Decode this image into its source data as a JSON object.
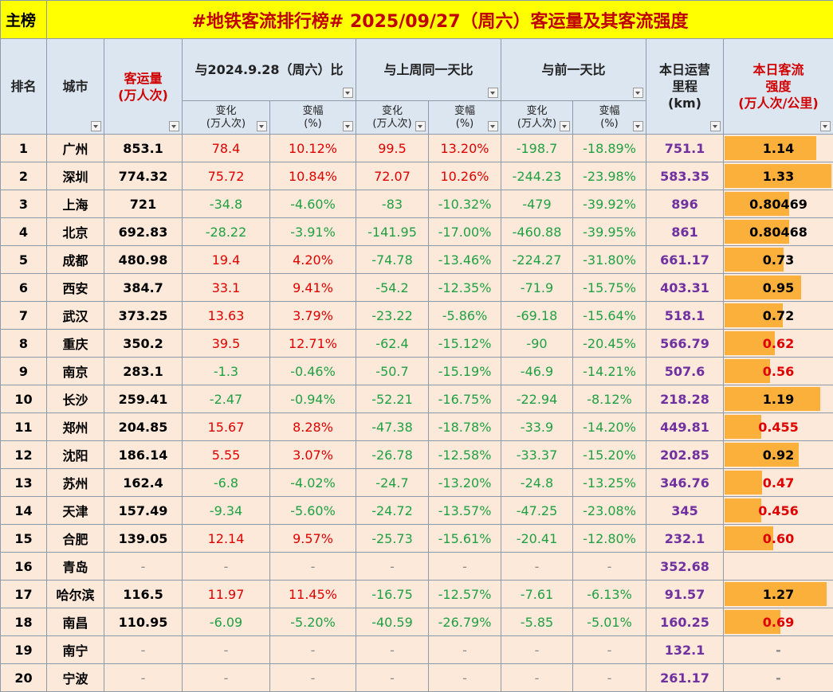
{
  "header": {
    "tag": "主榜",
    "title": "#地铁客流排行榜# 2025/09/27（周六）客运量及其客流强度"
  },
  "columns": {
    "rank": "排名",
    "city": "城市",
    "volume": "客运量\n(万人次)",
    "group1": "与2024.9.28（周六）比",
    "group2": "与上周同一天比",
    "group3": "与前一天比",
    "change": "变化\n(万人次)",
    "pct": "变幅\n(%)",
    "km": "本日运营\n里程\n(km)",
    "intensity": "本日客流\n强度\n(万人次/公里)"
  },
  "colors": {
    "positive": "#e00000",
    "negative": "#1fa043",
    "dash": "#888888",
    "km": "#7030a0",
    "bar": "#fbb03b"
  },
  "rows": [
    {
      "rank": "1",
      "city": "广州",
      "volume": "853.1",
      "cells": [
        "78.4",
        "10.12%",
        "99.5",
        "13.20%",
        "-198.7",
        "-18.89%"
      ],
      "km": "751.1",
      "intensity": "1.14",
      "intensity_color": "#000000"
    },
    {
      "rank": "2",
      "city": "深圳",
      "volume": "774.32",
      "cells": [
        "75.72",
        "10.84%",
        "72.07",
        "10.26%",
        "-244.23",
        "-23.98%"
      ],
      "km": "583.35",
      "intensity": "1.33",
      "intensity_color": "#000000"
    },
    {
      "rank": "3",
      "city": "上海",
      "volume": "721",
      "cells": [
        "-34.8",
        "-4.60%",
        "-83",
        "-10.32%",
        "-479",
        "-39.92%"
      ],
      "km": "896",
      "intensity": "0.80469",
      "intensity_color": "#000000"
    },
    {
      "rank": "4",
      "city": "北京",
      "volume": "692.83",
      "cells": [
        "-28.22",
        "-3.91%",
        "-141.95",
        "-17.00%",
        "-460.88",
        "-39.95%"
      ],
      "km": "861",
      "intensity": "0.80468",
      "intensity_color": "#000000"
    },
    {
      "rank": "5",
      "city": "成都",
      "volume": "480.98",
      "cells": [
        "19.4",
        "4.20%",
        "-74.78",
        "-13.46%",
        "-224.27",
        "-31.80%"
      ],
      "km": "661.17",
      "intensity": "0.73",
      "intensity_color": "#000000"
    },
    {
      "rank": "6",
      "city": "西安",
      "volume": "384.7",
      "cells": [
        "33.1",
        "9.41%",
        "-54.2",
        "-12.35%",
        "-71.9",
        "-15.75%"
      ],
      "km": "403.31",
      "intensity": "0.95",
      "intensity_color": "#000000"
    },
    {
      "rank": "7",
      "city": "武汉",
      "volume": "373.25",
      "cells": [
        "13.63",
        "3.79%",
        "-23.22",
        "-5.86%",
        "-69.18",
        "-15.64%"
      ],
      "km": "518.1",
      "intensity": "0.72",
      "intensity_color": "#000000"
    },
    {
      "rank": "8",
      "city": "重庆",
      "volume": "350.2",
      "cells": [
        "39.5",
        "12.71%",
        "-62.4",
        "-15.12%",
        "-90",
        "-20.45%"
      ],
      "km": "566.79",
      "intensity": "0.62",
      "intensity_color": "#e00000"
    },
    {
      "rank": "9",
      "city": "南京",
      "volume": "283.1",
      "cells": [
        "-1.3",
        "-0.46%",
        "-50.7",
        "-15.19%",
        "-46.9",
        "-14.21%"
      ],
      "km": "507.6",
      "intensity": "0.56",
      "intensity_color": "#e00000"
    },
    {
      "rank": "10",
      "city": "长沙",
      "volume": "259.41",
      "cells": [
        "-2.47",
        "-0.94%",
        "-52.21",
        "-16.75%",
        "-22.94",
        "-8.12%"
      ],
      "km": "218.28",
      "intensity": "1.19",
      "intensity_color": "#000000"
    },
    {
      "rank": "11",
      "city": "郑州",
      "volume": "204.85",
      "cells": [
        "15.67",
        "8.28%",
        "-47.38",
        "-18.78%",
        "-33.9",
        "-14.20%"
      ],
      "km": "449.81",
      "intensity": "0.455",
      "intensity_color": "#e00000"
    },
    {
      "rank": "12",
      "city": "沈阳",
      "volume": "186.14",
      "cells": [
        "5.55",
        "3.07%",
        "-26.78",
        "-12.58%",
        "-33.37",
        "-15.20%"
      ],
      "km": "202.85",
      "intensity": "0.92",
      "intensity_color": "#000000"
    },
    {
      "rank": "13",
      "city": "苏州",
      "volume": "162.4",
      "cells": [
        "-6.8",
        "-4.02%",
        "-24.7",
        "-13.20%",
        "-24.8",
        "-13.25%"
      ],
      "km": "346.76",
      "intensity": "0.47",
      "intensity_color": "#e00000"
    },
    {
      "rank": "14",
      "city": "天津",
      "volume": "157.49",
      "cells": [
        "-9.34",
        "-5.60%",
        "-24.72",
        "-13.57%",
        "-47.25",
        "-23.08%"
      ],
      "km": "345",
      "intensity": "0.456",
      "intensity_color": "#e00000"
    },
    {
      "rank": "15",
      "city": "合肥",
      "volume": "139.05",
      "cells": [
        "12.14",
        "9.57%",
        "-25.73",
        "-15.61%",
        "-20.41",
        "-12.80%"
      ],
      "km": "232.1",
      "intensity": "0.60",
      "intensity_color": "#e00000"
    },
    {
      "rank": "16",
      "city": "青岛",
      "volume": "-",
      "cells": [
        "-",
        "-",
        "-",
        "-",
        "-",
        "-"
      ],
      "km": "352.68",
      "intensity": null,
      "intensity_color": "#000000"
    },
    {
      "rank": "17",
      "city": "哈尔滨",
      "volume": "116.5",
      "cells": [
        "11.97",
        "11.45%",
        "-16.75",
        "-12.57%",
        "-7.61",
        "-6.13%"
      ],
      "km": "91.57",
      "intensity": "1.27",
      "intensity_color": "#000000"
    },
    {
      "rank": "18",
      "city": "南昌",
      "volume": "110.95",
      "cells": [
        "-6.09",
        "-5.20%",
        "-40.59",
        "-26.79%",
        "-5.85",
        "-5.01%"
      ],
      "km": "160.25",
      "intensity": "0.69",
      "intensity_color": "#e00000"
    },
    {
      "rank": "19",
      "city": "南宁",
      "volume": "-",
      "cells": [
        "-",
        "-",
        "-",
        "-",
        "-",
        "-"
      ],
      "km": "132.1",
      "intensity": "-",
      "intensity_color": "#000000"
    },
    {
      "rank": "20",
      "city": "宁波",
      "volume": "-",
      "cells": [
        "-",
        "-",
        "-",
        "-",
        "-",
        "-"
      ],
      "km": "261.17",
      "intensity": "-",
      "intensity_color": "#000000"
    }
  ]
}
